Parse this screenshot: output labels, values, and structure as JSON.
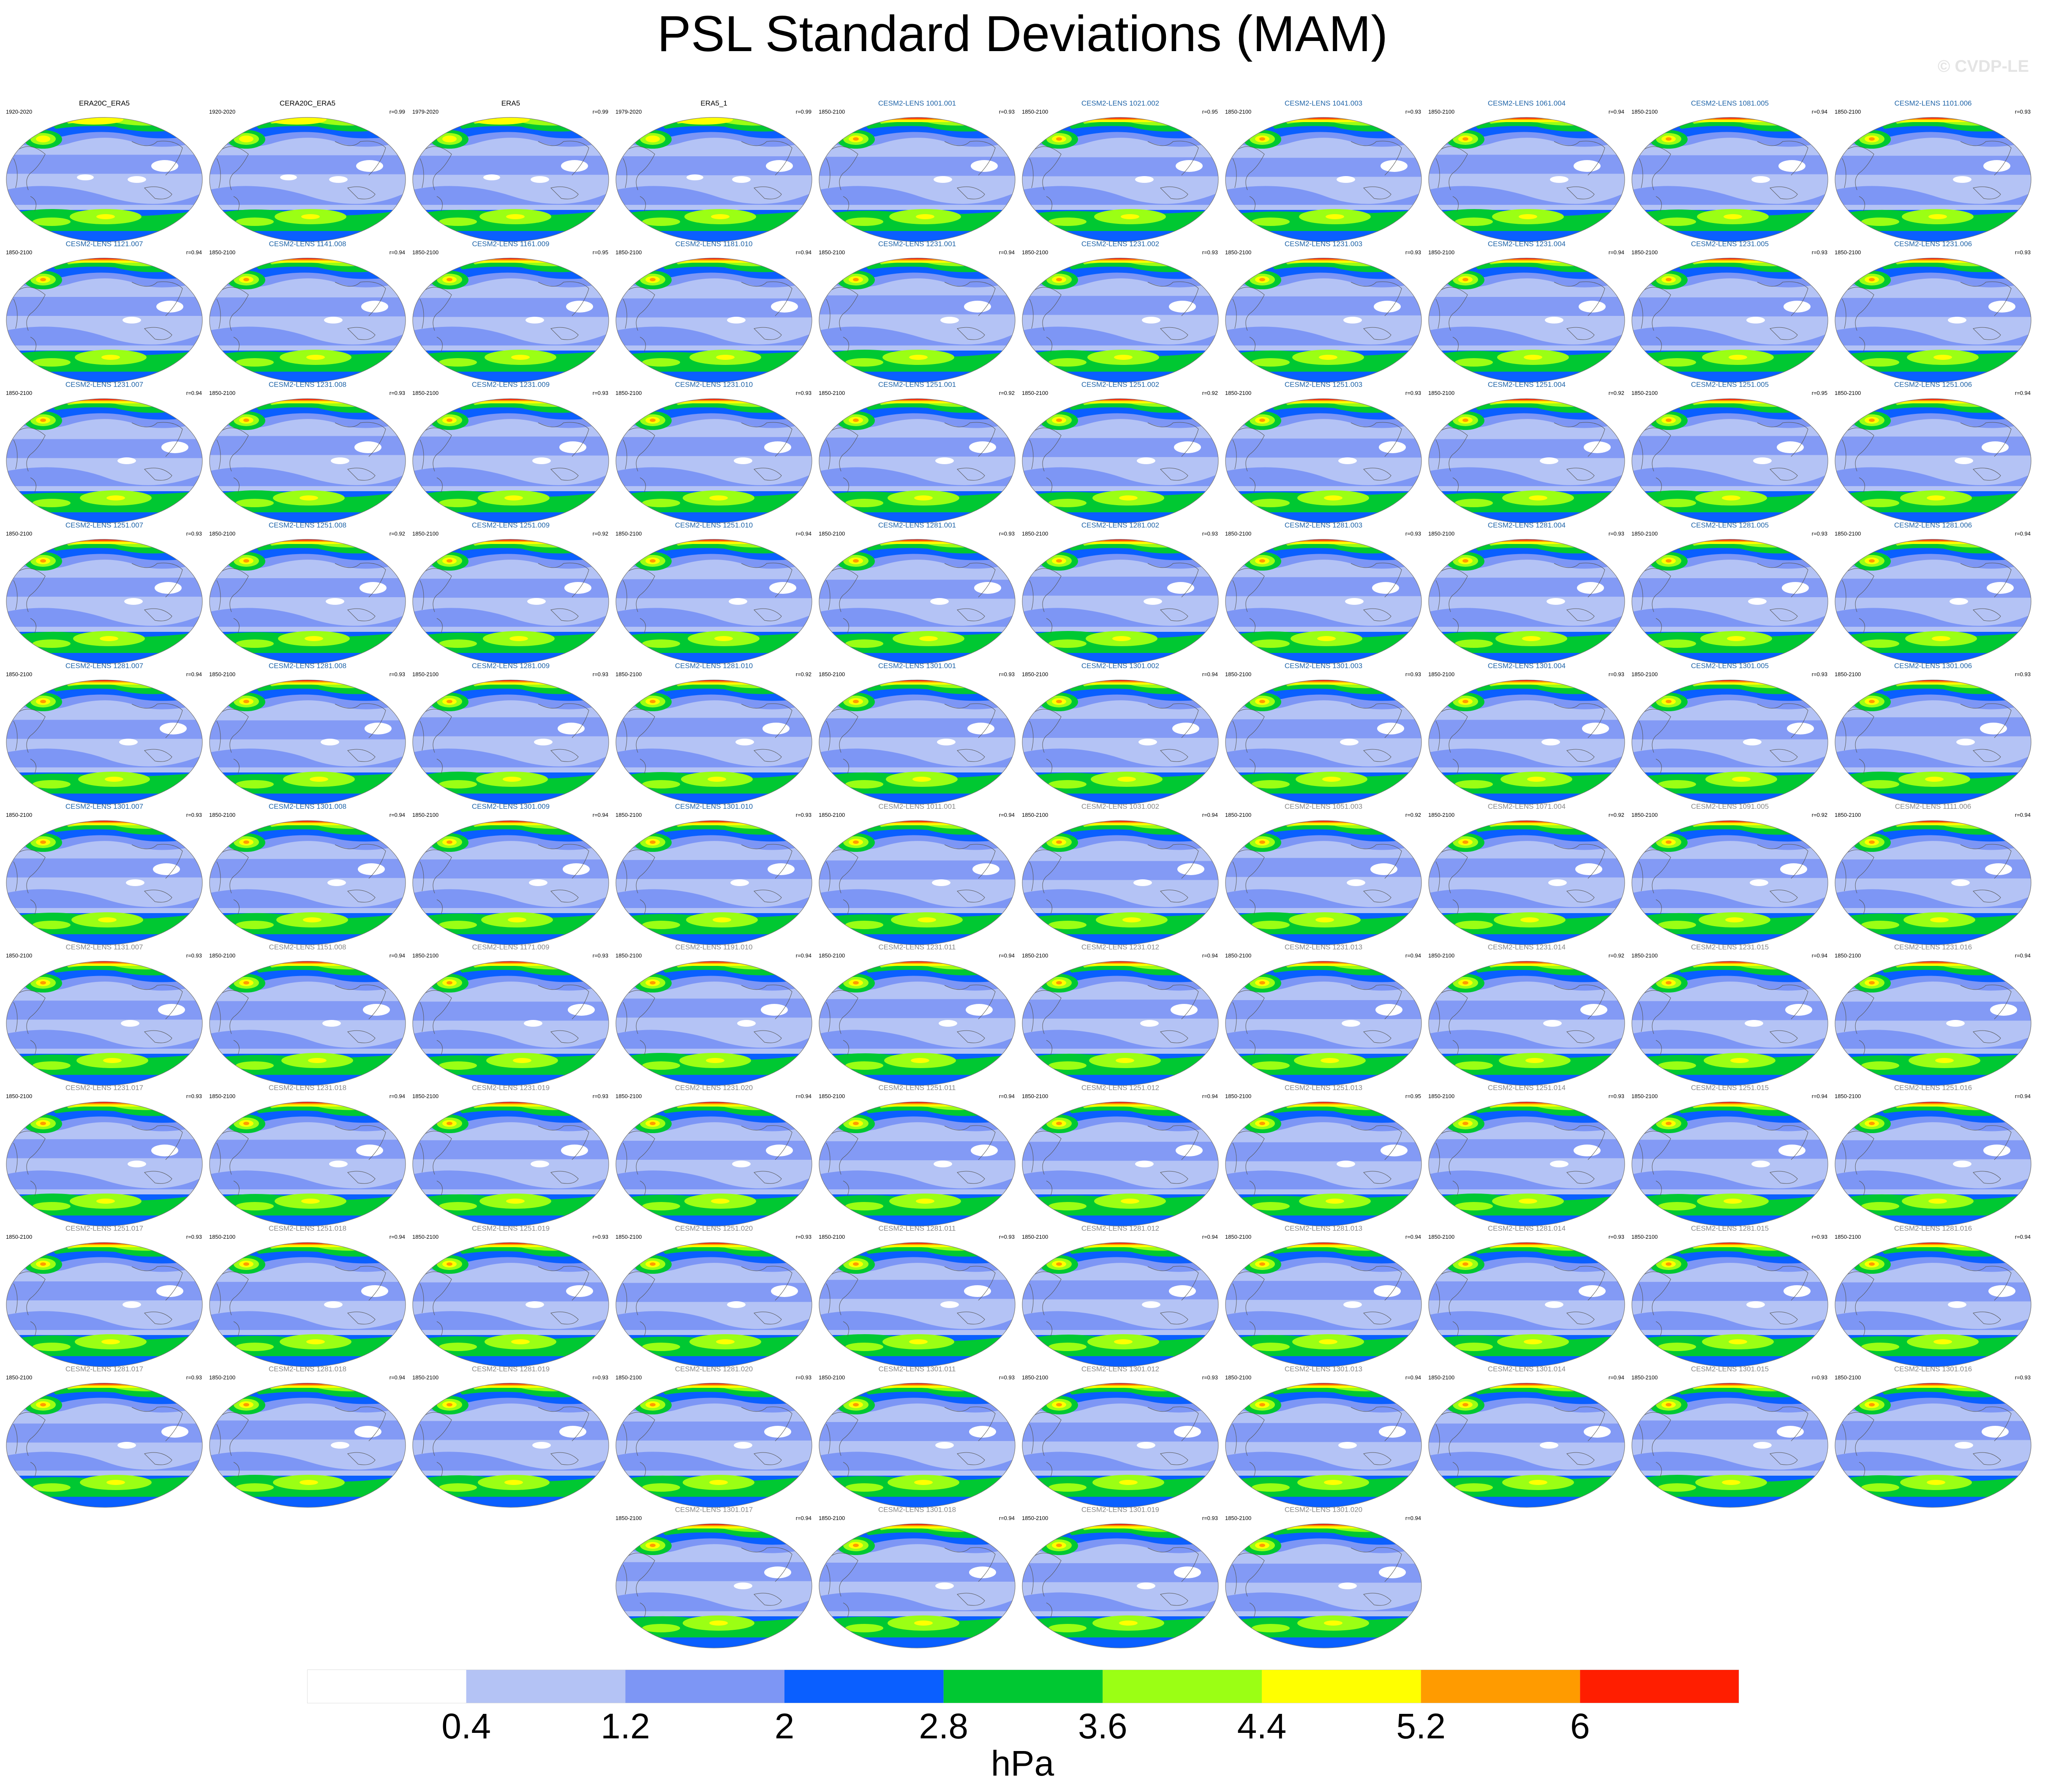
{
  "title": "PSL Standard Deviations (MAM)",
  "watermark": "© CVDP-LE",
  "colorbar": {
    "levels": [
      "0.4",
      "1.2",
      "2",
      "2.8",
      "3.6",
      "4.4",
      "5.2",
      "6"
    ],
    "colors": [
      "#ffffff",
      "#b4c3f5",
      "#7d96f5",
      "#0a5fff",
      "#00c832",
      "#9bff14",
      "#ffff00",
      "#ff9b00",
      "#ff1e00"
    ],
    "units": "hPa"
  },
  "chart_data": {
    "type": "heatmap",
    "title": "PSL Standard Deviations (MAM)",
    "units": "hPa",
    "contour_levels": [
      0.4,
      1.2,
      2,
      2.8,
      3.6,
      4.4,
      5.2,
      6
    ],
    "panels": [
      {
        "name": "ERA20C_ERA5",
        "years": "1920-2020",
        "r": "",
        "color": "#000000"
      },
      {
        "name": "CERA20C_ERA5",
        "years": "1920-2020",
        "r": "r=0.99",
        "color": "#000000"
      },
      {
        "name": "ERA5",
        "years": "1979-2020",
        "r": "r=0.99",
        "color": "#000000"
      },
      {
        "name": "ERA5_1",
        "years": "1979-2020",
        "r": "r=0.99",
        "color": "#000000"
      },
      {
        "name": "CESM2-LENS 1001.001",
        "years": "1850-2100",
        "r": "r=0.93",
        "color": "#1f64a8"
      },
      {
        "name": "CESM2-LENS 1021.002",
        "years": "1850-2100",
        "r": "r=0.95",
        "color": "#1f64a8"
      },
      {
        "name": "CESM2-LENS 1041.003",
        "years": "1850-2100",
        "r": "r=0.93",
        "color": "#1f64a8"
      },
      {
        "name": "CESM2-LENS 1061.004",
        "years": "1850-2100",
        "r": "r=0.94",
        "color": "#1f64a8"
      },
      {
        "name": "CESM2-LENS 1081.005",
        "years": "1850-2100",
        "r": "r=0.94",
        "color": "#1f64a8"
      },
      {
        "name": "CESM2-LENS 1101.006",
        "years": "1850-2100",
        "r": "r=0.93",
        "color": "#1f64a8"
      },
      {
        "name": "CESM2-LENS 1121.007",
        "years": "1850-2100",
        "r": "r=0.94",
        "color": "#1f64a8"
      },
      {
        "name": "CESM2-LENS 1141.008",
        "years": "1850-2100",
        "r": "r=0.94",
        "color": "#1f64a8"
      },
      {
        "name": "CESM2-LENS 1161.009",
        "years": "1850-2100",
        "r": "r=0.95",
        "color": "#1f64a8"
      },
      {
        "name": "CESM2-LENS 1181.010",
        "years": "1850-2100",
        "r": "r=0.94",
        "color": "#1f64a8"
      },
      {
        "name": "CESM2-LENS 1231.001",
        "years": "1850-2100",
        "r": "r=0.94",
        "color": "#1f64a8"
      },
      {
        "name": "CESM2-LENS 1231.002",
        "years": "1850-2100",
        "r": "r=0.93",
        "color": "#1f64a8"
      },
      {
        "name": "CESM2-LENS 1231.003",
        "years": "1850-2100",
        "r": "r=0.93",
        "color": "#1f64a8"
      },
      {
        "name": "CESM2-LENS 1231.004",
        "years": "1850-2100",
        "r": "r=0.94",
        "color": "#1f64a8"
      },
      {
        "name": "CESM2-LENS 1231.005",
        "years": "1850-2100",
        "r": "r=0.93",
        "color": "#1f64a8"
      },
      {
        "name": "CESM2-LENS 1231.006",
        "years": "1850-2100",
        "r": "r=0.93",
        "color": "#1f64a8"
      },
      {
        "name": "CESM2-LENS 1231.007",
        "years": "1850-2100",
        "r": "r=0.94",
        "color": "#1f64a8"
      },
      {
        "name": "CESM2-LENS 1231.008",
        "years": "1850-2100",
        "r": "r=0.93",
        "color": "#1f64a8"
      },
      {
        "name": "CESM2-LENS 1231.009",
        "years": "1850-2100",
        "r": "r=0.93",
        "color": "#1f64a8"
      },
      {
        "name": "CESM2-LENS 1231.010",
        "years": "1850-2100",
        "r": "r=0.93",
        "color": "#1f64a8"
      },
      {
        "name": "CESM2-LENS 1251.001",
        "years": "1850-2100",
        "r": "r=0.92",
        "color": "#1f64a8"
      },
      {
        "name": "CESM2-LENS 1251.002",
        "years": "1850-2100",
        "r": "r=0.92",
        "color": "#1f64a8"
      },
      {
        "name": "CESM2-LENS 1251.003",
        "years": "1850-2100",
        "r": "r=0.93",
        "color": "#1f64a8"
      },
      {
        "name": "CESM2-LENS 1251.004",
        "years": "1850-2100",
        "r": "r=0.92",
        "color": "#1f64a8"
      },
      {
        "name": "CESM2-LENS 1251.005",
        "years": "1850-2100",
        "r": "r=0.95",
        "color": "#1f64a8"
      },
      {
        "name": "CESM2-LENS 1251.006",
        "years": "1850-2100",
        "r": "r=0.94",
        "color": "#1f64a8"
      },
      {
        "name": "CESM2-LENS 1251.007",
        "years": "1850-2100",
        "r": "r=0.93",
        "color": "#1f64a8"
      },
      {
        "name": "CESM2-LENS 1251.008",
        "years": "1850-2100",
        "r": "r=0.92",
        "color": "#1f64a8"
      },
      {
        "name": "CESM2-LENS 1251.009",
        "years": "1850-2100",
        "r": "r=0.92",
        "color": "#1f64a8"
      },
      {
        "name": "CESM2-LENS 1251.010",
        "years": "1850-2100",
        "r": "r=0.94",
        "color": "#1f64a8"
      },
      {
        "name": "CESM2-LENS 1281.001",
        "years": "1850-2100",
        "r": "r=0.93",
        "color": "#1f64a8"
      },
      {
        "name": "CESM2-LENS 1281.002",
        "years": "1850-2100",
        "r": "r=0.93",
        "color": "#1f64a8"
      },
      {
        "name": "CESM2-LENS 1281.003",
        "years": "1850-2100",
        "r": "r=0.93",
        "color": "#1f64a8"
      },
      {
        "name": "CESM2-LENS 1281.004",
        "years": "1850-2100",
        "r": "r=0.93",
        "color": "#1f64a8"
      },
      {
        "name": "CESM2-LENS 1281.005",
        "years": "1850-2100",
        "r": "r=0.93",
        "color": "#1f64a8"
      },
      {
        "name": "CESM2-LENS 1281.006",
        "years": "1850-2100",
        "r": "r=0.94",
        "color": "#1f64a8"
      },
      {
        "name": "CESM2-LENS 1281.007",
        "years": "1850-2100",
        "r": "r=0.94",
        "color": "#1f64a8"
      },
      {
        "name": "CESM2-LENS 1281.008",
        "years": "1850-2100",
        "r": "r=0.93",
        "color": "#1f64a8"
      },
      {
        "name": "CESM2-LENS 1281.009",
        "years": "1850-2100",
        "r": "r=0.93",
        "color": "#1f64a8"
      },
      {
        "name": "CESM2-LENS 1281.010",
        "years": "1850-2100",
        "r": "r=0.92",
        "color": "#1f64a8"
      },
      {
        "name": "CESM2-LENS 1301.001",
        "years": "1850-2100",
        "r": "r=0.93",
        "color": "#1f64a8"
      },
      {
        "name": "CESM2-LENS 1301.002",
        "years": "1850-2100",
        "r": "r=0.94",
        "color": "#1f64a8"
      },
      {
        "name": "CESM2-LENS 1301.003",
        "years": "1850-2100",
        "r": "r=0.93",
        "color": "#1f64a8"
      },
      {
        "name": "CESM2-LENS 1301.004",
        "years": "1850-2100",
        "r": "r=0.93",
        "color": "#1f64a8"
      },
      {
        "name": "CESM2-LENS 1301.005",
        "years": "1850-2100",
        "r": "r=0.93",
        "color": "#1f64a8"
      },
      {
        "name": "CESM2-LENS 1301.006",
        "years": "1850-2100",
        "r": "r=0.93",
        "color": "#1f64a8"
      },
      {
        "name": "CESM2-LENS 1301.007",
        "years": "1850-2100",
        "r": "r=0.93",
        "color": "#1f64a8"
      },
      {
        "name": "CESM2-LENS 1301.008",
        "years": "1850-2100",
        "r": "r=0.94",
        "color": "#1f64a8"
      },
      {
        "name": "CESM2-LENS 1301.009",
        "years": "1850-2100",
        "r": "r=0.94",
        "color": "#1f64a8"
      },
      {
        "name": "CESM2-LENS 1301.010",
        "years": "1850-2100",
        "r": "r=0.93",
        "color": "#1f64a8"
      },
      {
        "name": "CESM2-LENS 1011.001",
        "years": "1850-2100",
        "r": "r=0.94",
        "color": "#888888"
      },
      {
        "name": "CESM2-LENS 1031.002",
        "years": "1850-2100",
        "r": "r=0.94",
        "color": "#888888"
      },
      {
        "name": "CESM2-LENS 1051.003",
        "years": "1850-2100",
        "r": "r=0.92",
        "color": "#888888"
      },
      {
        "name": "CESM2-LENS 1071.004",
        "years": "1850-2100",
        "r": "r=0.92",
        "color": "#888888"
      },
      {
        "name": "CESM2-LENS 1091.005",
        "years": "1850-2100",
        "r": "r=0.92",
        "color": "#888888"
      },
      {
        "name": "CESM2-LENS 1111.006",
        "years": "1850-2100",
        "r": "r=0.94",
        "color": "#888888"
      },
      {
        "name": "CESM2-LENS 1131.007",
        "years": "1850-2100",
        "r": "r=0.93",
        "color": "#888888"
      },
      {
        "name": "CESM2-LENS 1151.008",
        "years": "1850-2100",
        "r": "r=0.94",
        "color": "#888888"
      },
      {
        "name": "CESM2-LENS 1171.009",
        "years": "1850-2100",
        "r": "r=0.93",
        "color": "#888888"
      },
      {
        "name": "CESM2-LENS 1191.010",
        "years": "1850-2100",
        "r": "r=0.94",
        "color": "#888888"
      },
      {
        "name": "CESM2-LENS 1231.011",
        "years": "1850-2100",
        "r": "r=0.94",
        "color": "#888888"
      },
      {
        "name": "CESM2-LENS 1231.012",
        "years": "1850-2100",
        "r": "r=0.94",
        "color": "#888888"
      },
      {
        "name": "CESM2-LENS 1231.013",
        "years": "1850-2100",
        "r": "r=0.94",
        "color": "#888888"
      },
      {
        "name": "CESM2-LENS 1231.014",
        "years": "1850-2100",
        "r": "r=0.92",
        "color": "#888888"
      },
      {
        "name": "CESM2-LENS 1231.015",
        "years": "1850-2100",
        "r": "r=0.94",
        "color": "#888888"
      },
      {
        "name": "CESM2-LENS 1231.016",
        "years": "1850-2100",
        "r": "r=0.94",
        "color": "#888888"
      },
      {
        "name": "CESM2-LENS 1231.017",
        "years": "1850-2100",
        "r": "r=0.93",
        "color": "#888888"
      },
      {
        "name": "CESM2-LENS 1231.018",
        "years": "1850-2100",
        "r": "r=0.94",
        "color": "#888888"
      },
      {
        "name": "CESM2-LENS 1231.019",
        "years": "1850-2100",
        "r": "r=0.93",
        "color": "#888888"
      },
      {
        "name": "CESM2-LENS 1231.020",
        "years": "1850-2100",
        "r": "r=0.94",
        "color": "#888888"
      },
      {
        "name": "CESM2-LENS 1251.011",
        "years": "1850-2100",
        "r": "r=0.94",
        "color": "#888888"
      },
      {
        "name": "CESM2-LENS 1251.012",
        "years": "1850-2100",
        "r": "r=0.94",
        "color": "#888888"
      },
      {
        "name": "CESM2-LENS 1251.013",
        "years": "1850-2100",
        "r": "r=0.95",
        "color": "#888888"
      },
      {
        "name": "CESM2-LENS 1251.014",
        "years": "1850-2100",
        "r": "r=0.93",
        "color": "#888888"
      },
      {
        "name": "CESM2-LENS 1251.015",
        "years": "1850-2100",
        "r": "r=0.94",
        "color": "#888888"
      },
      {
        "name": "CESM2-LENS 1251.016",
        "years": "1850-2100",
        "r": "r=0.94",
        "color": "#888888"
      },
      {
        "name": "CESM2-LENS 1251.017",
        "years": "1850-2100",
        "r": "r=0.93",
        "color": "#888888"
      },
      {
        "name": "CESM2-LENS 1251.018",
        "years": "1850-2100",
        "r": "r=0.94",
        "color": "#888888"
      },
      {
        "name": "CESM2-LENS 1251.019",
        "years": "1850-2100",
        "r": "r=0.93",
        "color": "#888888"
      },
      {
        "name": "CESM2-LENS 1251.020",
        "years": "1850-2100",
        "r": "r=0.93",
        "color": "#888888"
      },
      {
        "name": "CESM2-LENS 1281.011",
        "years": "1850-2100",
        "r": "r=0.93",
        "color": "#888888"
      },
      {
        "name": "CESM2-LENS 1281.012",
        "years": "1850-2100",
        "r": "r=0.94",
        "color": "#888888"
      },
      {
        "name": "CESM2-LENS 1281.013",
        "years": "1850-2100",
        "r": "r=0.94",
        "color": "#888888"
      },
      {
        "name": "CESM2-LENS 1281.014",
        "years": "1850-2100",
        "r": "r=0.93",
        "color": "#888888"
      },
      {
        "name": "CESM2-LENS 1281.015",
        "years": "1850-2100",
        "r": "r=0.93",
        "color": "#888888"
      },
      {
        "name": "CESM2-LENS 1281.016",
        "years": "1850-2100",
        "r": "r=0.94",
        "color": "#888888"
      },
      {
        "name": "CESM2-LENS 1281.017",
        "years": "1850-2100",
        "r": "r=0.93",
        "color": "#888888"
      },
      {
        "name": "CESM2-LENS 1281.018",
        "years": "1850-2100",
        "r": "r=0.94",
        "color": "#888888"
      },
      {
        "name": "CESM2-LENS 1281.019",
        "years": "1850-2100",
        "r": "r=0.93",
        "color": "#888888"
      },
      {
        "name": "CESM2-LENS 1281.020",
        "years": "1850-2100",
        "r": "r=0.93",
        "color": "#888888"
      },
      {
        "name": "CESM2-LENS 1301.011",
        "years": "1850-2100",
        "r": "r=0.93",
        "color": "#888888"
      },
      {
        "name": "CESM2-LENS 1301.012",
        "years": "1850-2100",
        "r": "r=0.93",
        "color": "#888888"
      },
      {
        "name": "CESM2-LENS 1301.013",
        "years": "1850-2100",
        "r": "r=0.94",
        "color": "#888888"
      },
      {
        "name": "CESM2-LENS 1301.014",
        "years": "1850-2100",
        "r": "r=0.94",
        "color": "#888888"
      },
      {
        "name": "CESM2-LENS 1301.015",
        "years": "1850-2100",
        "r": "r=0.93",
        "color": "#888888"
      },
      {
        "name": "CESM2-LENS 1301.016",
        "years": "1850-2100",
        "r": "r=0.93",
        "color": "#888888"
      },
      {
        "name": "CESM2-LENS 1301.017",
        "years": "1850-2100",
        "r": "r=0.94",
        "color": "#888888"
      },
      {
        "name": "CESM2-LENS 1301.018",
        "years": "1850-2100",
        "r": "r=0.94",
        "color": "#888888"
      },
      {
        "name": "CESM2-LENS 1301.019",
        "years": "1850-2100",
        "r": "r=0.93",
        "color": "#888888"
      },
      {
        "name": "CESM2-LENS 1301.020",
        "years": "1850-2100",
        "r": "r=0.94",
        "color": "#888888"
      }
    ]
  }
}
